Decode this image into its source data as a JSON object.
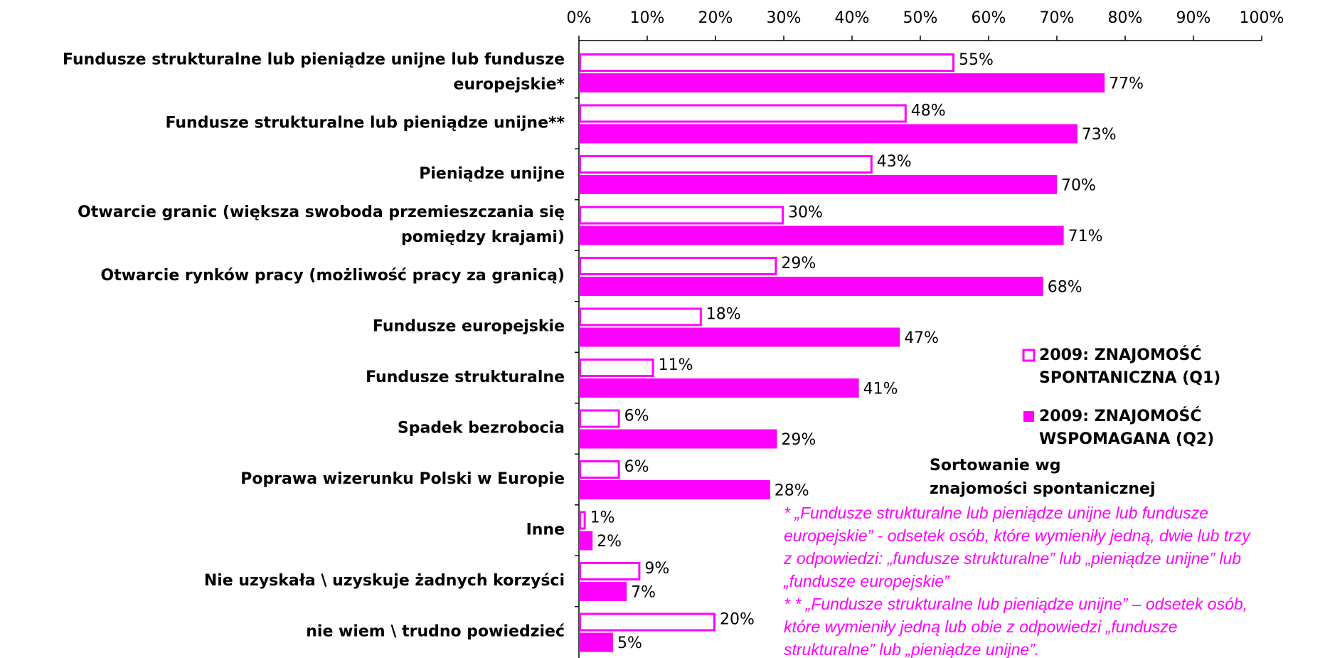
{
  "chart_data": {
    "type": "hbar",
    "categories": [
      "Fundusze strukturalne lub pieniądze unijne lub fundusze\neuropejskie*",
      "Fundusze strukturalne lub pieniądze unijne**",
      "Pieniądze unijne",
      "Otwarcie granic (większa swoboda przemieszczania się\npomiędzy krajami)",
      "Otwarcie rynków pracy (możliwość pracy za granicą)",
      "Fundusze europejskie",
      "Fundusze strukturalne",
      "Spadek bezrobocia",
      "Poprawa wizerunku Polski w Europie",
      "Inne",
      "Nie uzyskała \\ uzyskuje żadnych korzyści",
      "nie wiem \\ trudno powiedzieć"
    ],
    "series": [
      {
        "name": "2009: ZNAJOMOŚĆ\nSPONTANICZNA (Q1)",
        "color": "#ff00ff",
        "fill": "none",
        "values": [
          55,
          48,
          43,
          30,
          29,
          18,
          11,
          6,
          6,
          1,
          9,
          20
        ],
        "value_labels": [
          "55%",
          "48%",
          "43%",
          "30%",
          "29%",
          "18%",
          "11%",
          "6%",
          "6%",
          "1%",
          "9%",
          "20%"
        ]
      },
      {
        "name": "2009: ZNAJOMOŚĆ\nWSPOMAGANA (Q2)",
        "color": "#ff00ff",
        "fill": "solid",
        "values": [
          77,
          73,
          70,
          71,
          68,
          47,
          41,
          29,
          28,
          2,
          7,
          5
        ],
        "value_labels": [
          "77%",
          "73%",
          "70%",
          "71%",
          "68%",
          "47%",
          "41%",
          "29%",
          "28%",
          "2%",
          "7%",
          "5%"
        ]
      }
    ],
    "xlim": [
      0,
      100
    ],
    "xticks": [
      {
        "value": 0,
        "label": "0%"
      },
      {
        "value": 10,
        "label": "10%"
      },
      {
        "value": 20,
        "label": "20%"
      },
      {
        "value": 30,
        "label": "30%"
      },
      {
        "value": 40,
        "label": "40%"
      },
      {
        "value": 50,
        "label": "50%"
      },
      {
        "value": 60,
        "label": "60%"
      },
      {
        "value": 70,
        "label": "70%"
      },
      {
        "value": 80,
        "label": "80%"
      },
      {
        "value": 90,
        "label": "90%"
      },
      {
        "value": 100,
        "label": "100%"
      }
    ],
    "legend": "right",
    "sort_note": "Sortowanie wg\nznajomości spontanicznej",
    "notes": [
      "* „Fundusze strukturalne lub pieniądze unijne lub fundusze\neuropejskie” - odsetek osób, które wymieniły jedną, dwie lub trzy\nz odpowiedzi: „fundusze strukturalne” lub „pieniądze unijne” lub\n„fundusze europejskie”",
      "* * „Fundusze strukturalne lub pieniądze unijne” – odsetek osób,\nktóre wymieniły jedną lub obie z odpowiedzi „fundusze\nstrukturalne” lub „pieniądze unijne”."
    ]
  }
}
